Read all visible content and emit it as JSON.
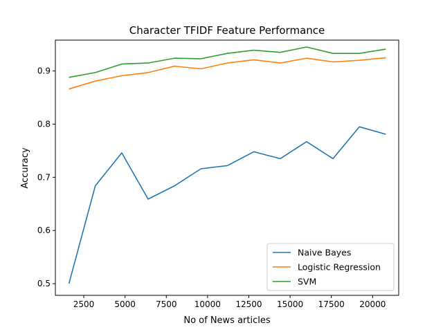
{
  "chart_data": {
    "type": "line",
    "title": "Character TFIDF Feature Performance",
    "xlabel": "No of News articles",
    "ylabel": "Accuracy",
    "xlim": [
      780,
      21580
    ],
    "ylim": [
      0.478,
      0.958
    ],
    "xticks": [
      2500,
      5000,
      7500,
      10000,
      12500,
      15000,
      17500,
      20000
    ],
    "yticks": [
      0.5,
      0.6,
      0.7,
      0.8,
      0.9
    ],
    "ytick_labels": [
      "0.5",
      "0.6",
      "0.7",
      "0.8",
      "0.9"
    ],
    "grid": false,
    "legend_position": "lower right",
    "x": [
      1600,
      3200,
      4800,
      6400,
      8000,
      9600,
      11200,
      12800,
      14400,
      16000,
      17600,
      19200,
      20800
    ],
    "series": [
      {
        "name": "Naive Bayes",
        "color": "#1f77b4",
        "values": [
          0.5,
          0.684,
          0.746,
          0.659,
          0.684,
          0.716,
          0.722,
          0.748,
          0.735,
          0.767,
          0.735,
          0.795,
          0.781
        ]
      },
      {
        "name": "Logistic Regression",
        "color": "#ff7f0e",
        "values": [
          0.866,
          0.881,
          0.891,
          0.897,
          0.909,
          0.904,
          0.915,
          0.921,
          0.915,
          0.924,
          0.917,
          0.92,
          0.925
        ]
      },
      {
        "name": "SVM",
        "color": "#2ca02c",
        "values": [
          0.888,
          0.897,
          0.913,
          0.915,
          0.924,
          0.923,
          0.933,
          0.939,
          0.935,
          0.945,
          0.933,
          0.933,
          0.941
        ]
      }
    ]
  }
}
